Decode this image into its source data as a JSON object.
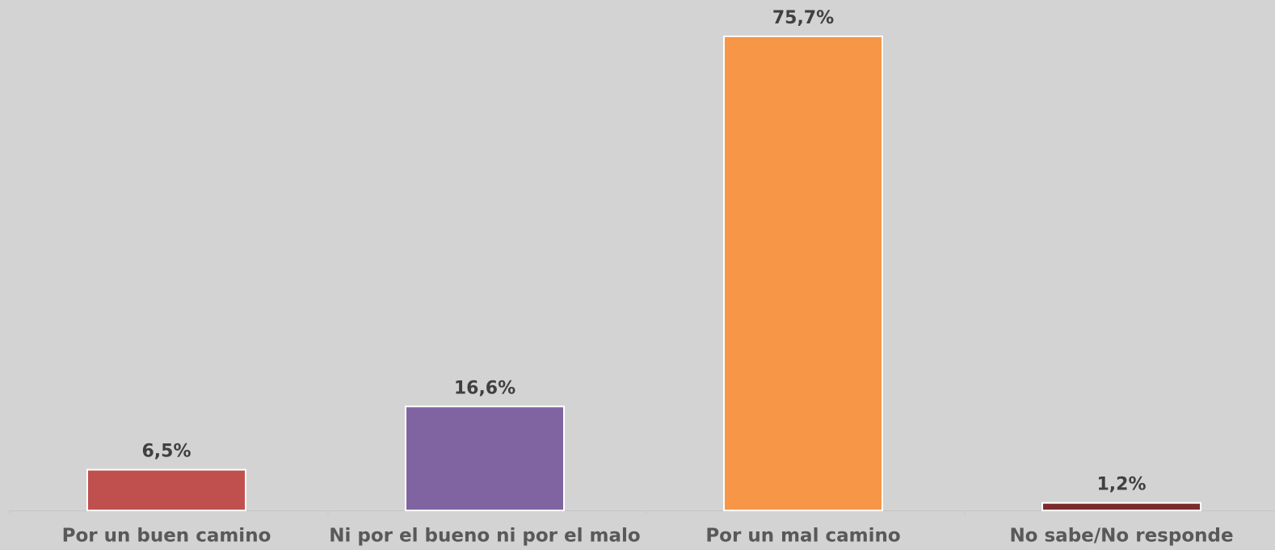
{
  "chart_data": {
    "type": "bar",
    "categories": [
      "Por un buen camino",
      "Ni por el bueno ni por el malo",
      "Por un mal camino",
      "No sabe/No responde"
    ],
    "values": [
      6.5,
      16.6,
      75.7,
      1.2
    ],
    "value_labels": [
      "6,5%",
      "16,6%",
      "75,7%",
      "1,2%"
    ],
    "colors": [
      "#c0504d",
      "#8064a2",
      "#f79646",
      "#7b2c2c"
    ]
  }
}
